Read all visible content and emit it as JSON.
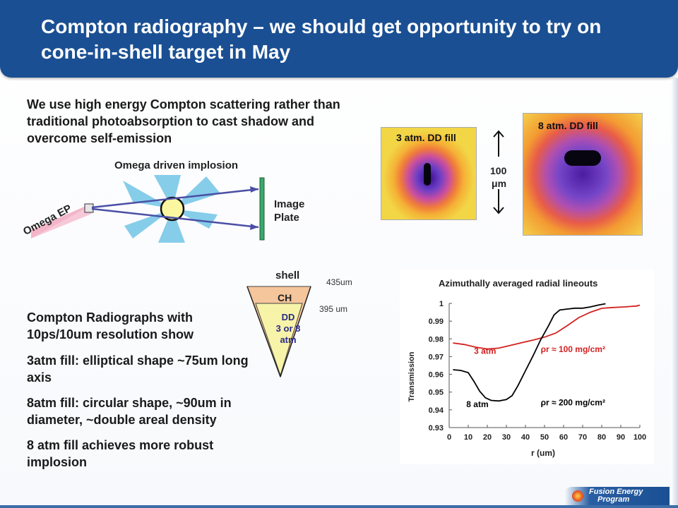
{
  "slide": {
    "title": "Compton radiography – we should get opportunity to try on cone-in-shell target in May",
    "intro": "We use high energy Compton scattering rather than traditional photoabsorption to cast shadow and overcome self-emission",
    "bullets": [
      "Compton Radiographs with 10ps/10um resolution show",
      "3atm fill: elliptical shape ~75um long axis",
      "8atm fill: circular shape, ~90um in diameter, ~double areal density",
      "8 atm fill achieves more  robust implosion"
    ]
  },
  "schematic": {
    "implosion_label": "Omega driven implosion",
    "image_plate_label_1": "Image",
    "image_plate_label_2": "Plate",
    "source_label": "Omega EP"
  },
  "target": {
    "shell_label": "shell",
    "ch_label": "CH",
    "dd_label_1": "DD",
    "dd_label_2": "3 or 8",
    "dd_label_3": "atm",
    "outer_radius": "435um",
    "inner_radius": "395 um"
  },
  "radiographs": {
    "left_label": "3 atm. DD fill",
    "right_label": "8 atm. DD fill",
    "scale_1": "100",
    "scale_2": "μm"
  },
  "footer": {
    "logo_text_1": "Fusion Energy",
    "logo_text_2": "Program"
  },
  "colors": {
    "title_bar": "#1a4f93",
    "series_3atm": "#d32020",
    "series_8atm": "#000000",
    "beam": "#7ec8e8",
    "shell_ch": "#f5c59b",
    "shell_dd": "#f7f3a8"
  },
  "chart_data": {
    "type": "line",
    "title": "Azimuthally averaged radial lineouts",
    "xlabel": "r (um)",
    "ylabel": "Transmission",
    "xlim": [
      0,
      100
    ],
    "ylim": [
      0.93,
      1.0
    ],
    "xticks": [
      0,
      10,
      20,
      30,
      40,
      50,
      60,
      70,
      80,
      90,
      100
    ],
    "yticks": [
      0.93,
      0.94,
      0.95,
      0.96,
      0.97,
      0.98,
      0.99,
      1
    ],
    "grid": false,
    "series": [
      {
        "name": "3 atm",
        "color": "#d32020",
        "x": [
          2,
          8,
          14,
          20,
          26,
          32,
          38,
          44,
          50,
          56,
          62,
          68,
          74,
          80,
          86,
          92,
          98,
          100
        ],
        "y": [
          0.9777,
          0.9768,
          0.9753,
          0.9743,
          0.9748,
          0.9763,
          0.9778,
          0.9793,
          0.981,
          0.9833,
          0.9875,
          0.992,
          0.995,
          0.9972,
          0.9977,
          0.998,
          0.9985,
          0.999
        ]
      },
      {
        "name": "8 atm",
        "color": "#000000",
        "x": [
          2,
          6,
          10,
          13,
          16,
          19,
          22,
          26,
          30,
          33,
          36,
          40,
          44,
          48,
          52,
          55,
          58,
          62,
          66,
          70,
          74,
          78,
          82
        ],
        "y": [
          0.9626,
          0.9622,
          0.961,
          0.956,
          0.9505,
          0.9468,
          0.9453,
          0.945,
          0.9458,
          0.948,
          0.9535,
          0.962,
          0.9705,
          0.9795,
          0.9872,
          0.9935,
          0.9963,
          0.9968,
          0.9973,
          0.9973,
          0.998,
          0.999,
          0.9998
        ]
      }
    ],
    "annotations": [
      {
        "text": "3 atm",
        "x": 13,
        "y": 0.9715,
        "color": "#d32020"
      },
      {
        "text": "ρr ≈ 100 mg/cm²",
        "x": 48,
        "y": 0.9725,
        "color": "#d32020"
      },
      {
        "text": "8 atm",
        "x": 9,
        "y": 0.9415,
        "color": "#000000"
      },
      {
        "text": "ρr ≈ 200 mg/cm²",
        "x": 48,
        "y": 0.9425,
        "color": "#000000"
      }
    ]
  }
}
